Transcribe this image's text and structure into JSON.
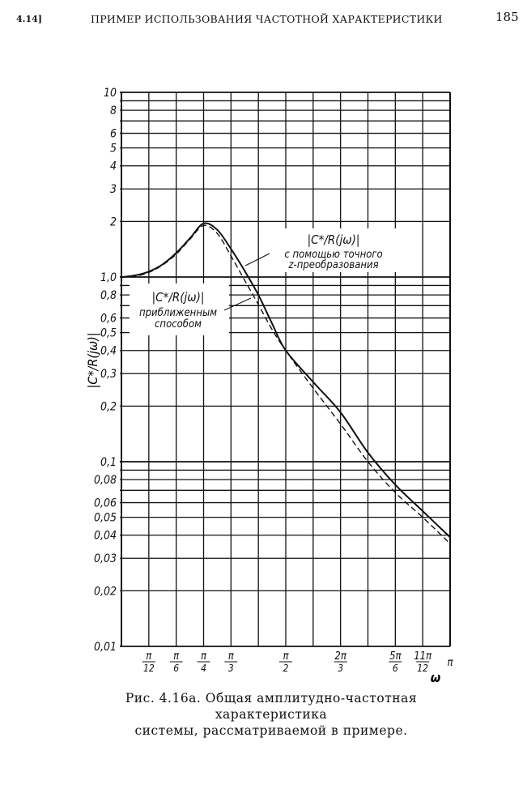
{
  "header": {
    "section": "4.14]",
    "title": "ПРИМЕР ИСПОЛЬЗОВАНИЯ ЧАСТОТНОЙ ХАРАКТЕРИСТИКИ",
    "page": "185"
  },
  "chart_data": {
    "type": "line",
    "title": "",
    "xlabel": "ω",
    "ylabel": "|C*/R(jω)|",
    "x_units": "fraction of π",
    "xlim": [
      0,
      1
    ],
    "ylim": [
      0.01,
      10
    ],
    "yscale": "log",
    "grid": true,
    "x_ticks": [
      {
        "value": 0.08333,
        "num": "π",
        "den": "12"
      },
      {
        "value": 0.16667,
        "num": "π",
        "den": "6"
      },
      {
        "value": 0.25,
        "num": "π",
        "den": "4"
      },
      {
        "value": 0.33333,
        "num": "π",
        "den": "3"
      },
      {
        "value": 0.5,
        "num": "π",
        "den": "2"
      },
      {
        "value": 0.66667,
        "num": "2π",
        "den": "3"
      },
      {
        "value": 0.83333,
        "num": "5π",
        "den": "6"
      },
      {
        "value": 0.91667,
        "num": "11π",
        "den": "12"
      },
      {
        "value": 1.0,
        "num": "π",
        "den": ""
      }
    ],
    "y_ticks": [
      {
        "value": 10,
        "label": "10"
      },
      {
        "value": 8,
        "label": "8"
      },
      {
        "value": 6,
        "label": "6"
      },
      {
        "value": 5,
        "label": "5"
      },
      {
        "value": 4,
        "label": "4"
      },
      {
        "value": 3,
        "label": "3"
      },
      {
        "value": 2,
        "label": "2"
      },
      {
        "value": 1,
        "label": "1,0"
      },
      {
        "value": 0.8,
        "label": "0,8"
      },
      {
        "value": 0.6,
        "label": "0,6"
      },
      {
        "value": 0.5,
        "label": "0,5"
      },
      {
        "value": 0.4,
        "label": "0,4"
      },
      {
        "value": 0.3,
        "label": "0,3"
      },
      {
        "value": 0.2,
        "label": "0,2"
      },
      {
        "value": 0.1,
        "label": "0,1"
      },
      {
        "value": 0.08,
        "label": "0,08"
      },
      {
        "value": 0.06,
        "label": "0,06"
      },
      {
        "value": 0.05,
        "label": "0,05"
      },
      {
        "value": 0.04,
        "label": "0,04"
      },
      {
        "value": 0.03,
        "label": "0,03"
      },
      {
        "value": 0.02,
        "label": "0,02"
      },
      {
        "value": 0.01,
        "label": "0,01"
      }
    ],
    "series": [
      {
        "name": "exact z-transform",
        "style": "solid",
        "x": [
          0,
          0.04167,
          0.08333,
          0.125,
          0.16667,
          0.20833,
          0.25,
          0.29167,
          0.33333,
          0.375,
          0.41667,
          0.45833,
          0.5,
          0.58333,
          0.66667,
          0.75,
          0.83333,
          0.91667,
          1.0
        ],
        "y": [
          1.0,
          1.02,
          1.07,
          1.17,
          1.35,
          1.62,
          1.95,
          1.8,
          1.42,
          1.08,
          0.8,
          0.56,
          0.4,
          0.27,
          0.185,
          0.112,
          0.075,
          0.054,
          0.039
        ]
      },
      {
        "name": "approximate method",
        "style": "dashed",
        "x": [
          0,
          0.04167,
          0.08333,
          0.125,
          0.16667,
          0.20833,
          0.25,
          0.29167,
          0.33333,
          0.375,
          0.41667,
          0.45833,
          0.5,
          0.58333,
          0.66667,
          0.75,
          0.83333,
          0.91667,
          1.0
        ],
        "y": [
          1.0,
          1.01,
          1.06,
          1.16,
          1.33,
          1.6,
          1.9,
          1.72,
          1.3,
          0.96,
          0.71,
          0.52,
          0.4,
          0.25,
          0.16,
          0.1,
          0.068,
          0.05,
          0.036
        ]
      }
    ],
    "annotations": [
      {
        "lines": [
          "|C*/R(jω)|",
          "с помощью точного",
          "z-преобразования"
        ],
        "target": "exact z-transform"
      },
      {
        "lines": [
          "|C*/R(jω)|",
          "приближенным",
          "способом"
        ],
        "target": "approximate method"
      }
    ]
  },
  "caption": {
    "line1": "Рис. 4.16а. Общая амплитудно-частотная характеристика",
    "line2": "системы, рассматриваемой в примере."
  }
}
